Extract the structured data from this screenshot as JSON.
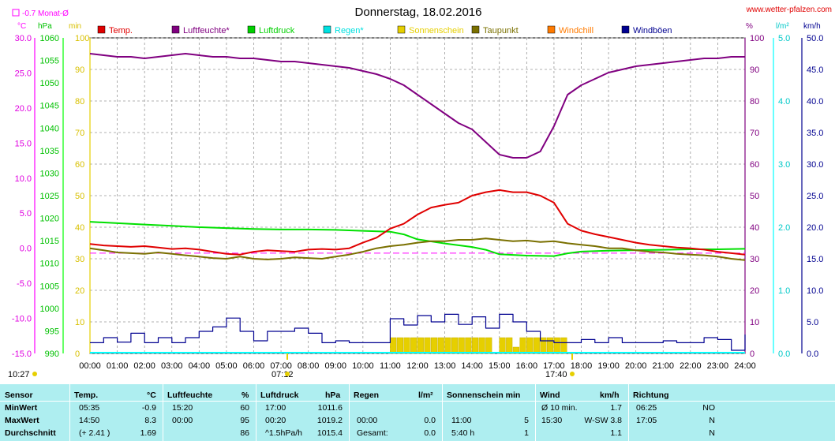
{
  "title": "Donnerstag, 18.02.2016",
  "brand": "www.wetter-pfalzen.com",
  "monat_note": "-0.7 Monat-Ø",
  "left_units": [
    "°C",
    "hPa",
    "min"
  ],
  "right_units": [
    "%",
    "l/m²",
    "km/h"
  ],
  "sunrise_label": "07:12",
  "sunset_label": "17:40",
  "current_time_label": "10:27",
  "legend": [
    {
      "label": "Temp.",
      "color": "#e00000"
    },
    {
      "label": "Luftfeuchte*",
      "color": "#800080"
    },
    {
      "label": "Luftdruck",
      "color": "#00d000"
    },
    {
      "label": "Regen*",
      "color": "#00e0e0"
    },
    {
      "label": "Sonnenschein",
      "color": "#e6cf00"
    },
    {
      "label": "Taupunkt",
      "color": "#7a7000"
    },
    {
      "label": "Windchill",
      "color": "#ff7a00"
    },
    {
      "label": "Windböen",
      "color": "#000090"
    }
  ],
  "chart_data": {
    "type": "line",
    "title": "Donnerstag, 18.02.2016",
    "x_ticks": [
      "00:00",
      "01:00",
      "02:00",
      "03:00",
      "04:00",
      "05:00",
      "06:00",
      "07:00",
      "08:00",
      "09:00",
      "10:00",
      "11:00",
      "12:00",
      "13:00",
      "14:00",
      "15:00",
      "16:00",
      "17:00",
      "18:00",
      "19:00",
      "20:00",
      "21:00",
      "22:00",
      "23:00",
      "24:00"
    ],
    "axes": {
      "temp_c": {
        "range": [
          -15,
          30
        ],
        "ticks": [
          "30.0",
          "25.0",
          "20.0",
          "15.0",
          "10.0",
          "5.0",
          "0.0",
          "-5.0",
          "-10.0",
          "-15.0"
        ],
        "color": "#ff00ff"
      },
      "pressure_hpa": {
        "range": [
          990,
          1060
        ],
        "ticks": [
          "1060",
          "1055",
          "1050",
          "1045",
          "1040",
          "1035",
          "1030",
          "1025",
          "1020",
          "1015",
          "1010",
          "1005",
          "1000",
          "995",
          "990"
        ],
        "color": "#00ff00"
      },
      "sun_min": {
        "range": [
          0,
          100
        ],
        "ticks": [
          "100",
          "90",
          "80",
          "70",
          "60",
          "50",
          "40",
          "30",
          "20",
          "10",
          "0"
        ],
        "color": "#e6cf00"
      },
      "humidity_pct": {
        "range": [
          0,
          100
        ],
        "ticks": [
          "100",
          "90",
          "80",
          "70",
          "60",
          "50",
          "40",
          "30",
          "20",
          "10",
          "0"
        ],
        "color": "#800080"
      },
      "rain_lm2": {
        "range": [
          0,
          5
        ],
        "ticks": [
          "5.0",
          "4.0",
          "3.0",
          "2.0",
          "1.0",
          "0.0"
        ],
        "color": "#00ffff"
      },
      "wind_kmh": {
        "range": [
          0,
          50
        ],
        "ticks": [
          "50.0",
          "45.0",
          "40.0",
          "35.0",
          "30.0",
          "25.0",
          "20.0",
          "15.0",
          "10.0",
          "5.0",
          "0.0"
        ],
        "color": "#000090"
      }
    },
    "monthly_avg_temp": -0.7,
    "series": [
      {
        "name": "Luftfeuchte*",
        "axis": "humidity_pct",
        "x": [
          0,
          0.5,
          1,
          1.5,
          2,
          2.5,
          3,
          3.5,
          4,
          4.5,
          5,
          5.5,
          6,
          6.5,
          7,
          7.5,
          8,
          8.5,
          9,
          9.5,
          10,
          10.5,
          11,
          11.5,
          12,
          12.5,
          13,
          13.5,
          14,
          14.5,
          15,
          15.5,
          16,
          16.5,
          17,
          17.5,
          18,
          18.5,
          19,
          19.5,
          20,
          20.5,
          21,
          21.5,
          22,
          22.5,
          23,
          23.5,
          24
        ],
        "y": [
          95,
          94.5,
          94,
          94,
          93.5,
          94,
          94.5,
          95,
          94.5,
          94,
          94,
          93.5,
          93.5,
          93,
          92.5,
          92.5,
          92,
          91.5,
          91,
          90.5,
          89.5,
          88.5,
          87,
          85,
          82,
          79,
          76,
          73,
          71,
          67,
          63,
          62,
          62,
          64,
          72,
          82,
          85,
          87,
          89,
          90,
          91,
          91.5,
          92,
          92.5,
          93,
          93.5,
          93.5,
          94,
          94
        ]
      },
      {
        "name": "Temp.",
        "axis": "temp_c",
        "x": [
          0,
          0.5,
          1,
          1.5,
          2,
          2.5,
          3,
          3.5,
          4,
          4.5,
          5,
          5.5,
          6,
          6.5,
          7,
          7.5,
          8,
          8.5,
          9,
          9.5,
          10,
          10.5,
          11,
          11.5,
          12,
          12.5,
          13,
          13.5,
          14,
          14.5,
          15,
          15.5,
          16,
          16.5,
          17,
          17.5,
          18,
          18.5,
          19,
          19.5,
          20,
          20.5,
          21,
          21.5,
          22,
          22.5,
          23,
          23.5,
          24
        ],
        "y": [
          0.6,
          0.4,
          0.3,
          0.2,
          0.3,
          0.1,
          -0.1,
          0.0,
          -0.2,
          -0.5,
          -0.8,
          -0.9,
          -0.5,
          -0.3,
          -0.4,
          -0.5,
          -0.2,
          -0.1,
          -0.2,
          0.0,
          0.8,
          1.5,
          2.8,
          3.5,
          4.8,
          5.8,
          6.2,
          6.5,
          7.5,
          8.0,
          8.3,
          8.0,
          8.0,
          7.5,
          6.5,
          3.5,
          2.5,
          2.0,
          1.6,
          1.2,
          0.8,
          0.5,
          0.3,
          0.1,
          0.0,
          -0.2,
          -0.5,
          -0.7,
          -0.9
        ]
      },
      {
        "name": "Luftdruck",
        "axis": "pressure_hpa",
        "x": [
          0,
          1,
          2,
          3,
          4,
          5,
          6,
          7,
          8,
          9,
          10,
          11,
          11.5,
          12,
          13,
          14,
          14.5,
          15,
          16,
          17,
          17.5,
          18,
          19,
          20,
          21,
          22,
          23,
          24
        ],
        "y": [
          1019.2,
          1018.9,
          1018.6,
          1018.3,
          1018.0,
          1017.8,
          1017.6,
          1017.5,
          1017.5,
          1017.4,
          1017.2,
          1017.0,
          1016.4,
          1015.3,
          1014.4,
          1013.6,
          1013.0,
          1012.0,
          1011.7,
          1011.6,
          1012.2,
          1012.6,
          1012.8,
          1012.9,
          1013.0,
          1013.1,
          1013.1,
          1013.2
        ]
      },
      {
        "name": "Taupunkt",
        "axis": "temp_c",
        "x": [
          0,
          0.5,
          1,
          1.5,
          2,
          2.5,
          3,
          3.5,
          4,
          4.5,
          5,
          5.5,
          6,
          6.5,
          7,
          7.5,
          8,
          8.5,
          9,
          9.5,
          10,
          10.5,
          11,
          11.5,
          12,
          12.5,
          13,
          13.5,
          14,
          14.5,
          15,
          15.5,
          16,
          16.5,
          17,
          17.5,
          18,
          18.5,
          19,
          19.5,
          20,
          20.5,
          21,
          21.5,
          22,
          22.5,
          23,
          23.5,
          24
        ],
        "y": [
          0,
          -0.3,
          -0.6,
          -0.7,
          -0.8,
          -0.6,
          -0.8,
          -1.0,
          -1.2,
          -1.4,
          -1.5,
          -1.2,
          -1.5,
          -1.6,
          -1.5,
          -1.3,
          -1.4,
          -1.5,
          -1.2,
          -0.9,
          -0.5,
          0.0,
          0.3,
          0.5,
          0.8,
          1.0,
          1.0,
          1.2,
          1.2,
          1.4,
          1.2,
          1.0,
          1.1,
          0.9,
          1.0,
          0.7,
          0.5,
          0.3,
          0.0,
          0.0,
          -0.3,
          -0.5,
          -0.6,
          -0.8,
          -0.9,
          -1.0,
          -1.2,
          -1.5,
          -1.7
        ]
      },
      {
        "name": "Windböen",
        "axis": "wind_kmh",
        "x": [
          0,
          0.5,
          1,
          1.5,
          2,
          2.5,
          3,
          3.5,
          4,
          4.5,
          5,
          5.5,
          6,
          6.5,
          7,
          7.5,
          8,
          8.5,
          9,
          9.5,
          10,
          10.5,
          11,
          11.5,
          12,
          12.5,
          13,
          13.5,
          14,
          14.5,
          15,
          15.5,
          16,
          16.5,
          17,
          17.5,
          18,
          18.5,
          19,
          19.5,
          20,
          20.5,
          21,
          21.5,
          22,
          22.5,
          23,
          23.5,
          24
        ],
        "y": [
          1.7,
          2.5,
          1.8,
          3.2,
          1.7,
          2.5,
          1.7,
          2.5,
          3.5,
          4.2,
          5.6,
          3.5,
          2.0,
          3.5,
          3.5,
          4.0,
          3.2,
          1.7,
          2.0,
          1.7,
          1.7,
          1.7,
          5.5,
          4.5,
          6.0,
          5.0,
          6.2,
          4.6,
          5.8,
          4.0,
          6.2,
          5.0,
          3.5,
          2.0,
          1.7,
          1.7,
          2.2,
          1.7,
          2.5,
          1.7,
          1.7,
          1.7,
          2.0,
          1.7,
          1.7,
          2.5,
          2.2,
          0.5,
          3.0
        ]
      },
      {
        "name": "Sonnenschein",
        "axis": "sun_min",
        "type": "bar",
        "x": [
          11,
          11.25,
          11.5,
          11.75,
          12,
          12.25,
          12.5,
          12.75,
          13,
          13.25,
          13.5,
          13.75,
          14,
          14.25,
          14.5,
          15,
          15.25,
          15.5,
          15.75,
          16,
          16.25,
          16.5,
          16.75,
          17,
          17.25
        ],
        "y": [
          5,
          5,
          5,
          5,
          5,
          5,
          5,
          5,
          5,
          5,
          5,
          5,
          5,
          5,
          5,
          5,
          5,
          2,
          5,
          5,
          5,
          5,
          5,
          5,
          5
        ]
      }
    ]
  },
  "stats": {
    "headers": {
      "sensor": "Sensor",
      "temp": "Temp.",
      "temp_unit": "°C",
      "hum": "Luftfeuchte",
      "hum_unit": "%",
      "press": "Luftdruck",
      "press_unit": "hPa",
      "rain": "Regen",
      "rain_unit": "l/m²",
      "sun": "Sonnenschein min",
      "wind": "Wind",
      "wind_unit": "km/h",
      "dir": "Richtung"
    },
    "rows": [
      {
        "label": "MinWert",
        "temp_time": "05:35",
        "temp_val": "-0.9",
        "hum_time": "15:20",
        "hum_val": "60",
        "press_time": "17:00",
        "press_val": "1011.6",
        "rain_time": "",
        "rain_val": "",
        "sun_time": "",
        "sun_val": "",
        "wind_time": "Ø 10 min.",
        "wind_val": "1.7",
        "dir_time": "06:25",
        "dir_val": "NO"
      },
      {
        "label": "MaxWert",
        "temp_time": "14:50",
        "temp_val": "8.3",
        "hum_time": "00:00",
        "hum_val": "95",
        "press_time": "00:20",
        "press_val": "1019.2",
        "rain_time": "00:00",
        "rain_val": "0.0",
        "sun_time": "11:00",
        "sun_val": "5",
        "wind_time": "15:30",
        "wind_val": "W-SW 3.8",
        "dir_time": "17:05",
        "dir_val": "N"
      },
      {
        "label": "Durchschnitt",
        "temp_time": "(+ 2.41 )",
        "temp_val": "1.69",
        "hum_time": "",
        "hum_val": "86",
        "press_time": "^1.5hPa/h",
        "press_val": "1015.4",
        "rain_time": "Gesamt:",
        "rain_val": "0.0",
        "sun_time": "5:40 h",
        "sun_val": "1",
        "wind_time": "",
        "wind_val": "1.1",
        "dir_time": "",
        "dir_val": "N"
      }
    ]
  }
}
